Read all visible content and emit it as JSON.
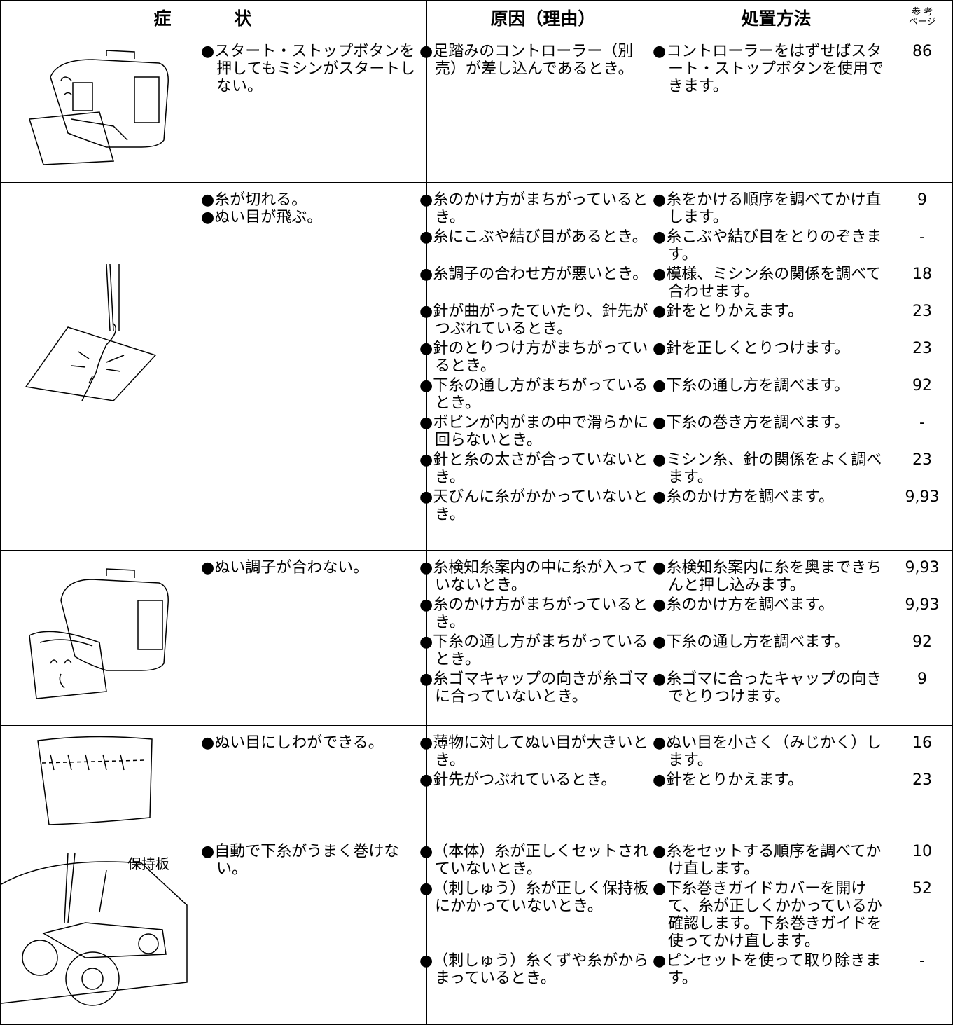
{
  "header": {
    "symptom_1": "症",
    "symptom_2": "状",
    "cause": "原因（理由）",
    "remedy": "処置方法",
    "page_1": "参 考",
    "page_2": "ページ"
  },
  "rows": [
    {
      "symptoms": [
        "●スタート・ストップボタンを押してもミシンがスタートしない。"
      ],
      "items": [
        {
          "cause": "●足踏みのコントローラー（別売）が差し込んであるとき。",
          "remedy": "●コントローラーをはずせばスタート・ストップボタンを使用できます。",
          "page": "86"
        }
      ]
    },
    {
      "symptoms": [
        "●糸が切れる。",
        "●ぬい目が飛ぶ。"
      ],
      "items": [
        {
          "cause": "●糸のかけ方がまちがっているとき。",
          "remedy": "●糸をかける順序を調べてかけ直します。",
          "page": "9"
        },
        {
          "cause": "●糸にこぶや結び目があるとき。",
          "remedy": "●糸こぶや結び目をとりのぞきます。",
          "page": "-"
        },
        {
          "cause": "●糸調子の合わせ方が悪いとき。",
          "remedy": "●模様、ミシン糸の関係を調べて合わせます。",
          "page": "18"
        },
        {
          "cause": "●針が曲がったていたり、針先がつぶれているとき。",
          "remedy": "●針をとりかえます。",
          "page": "23"
        },
        {
          "cause": "●針のとりつけ方がまちがっているとき。",
          "remedy": "●針を正しくとりつけます。",
          "page": "23"
        },
        {
          "cause": "●下糸の通し方がまちがっているとき。",
          "remedy": "●下糸の通し方を調べます。",
          "page": "92"
        },
        {
          "cause": "●ボビンが内がまの中で滑らかに回らないとき。",
          "remedy": "●下糸の巻き方を調べます。",
          "page": "-"
        },
        {
          "cause": "●針と糸の太さが合っていないとき。",
          "remedy": "●ミシン糸、針の関係をよく調べます。",
          "page": "23"
        },
        {
          "cause": "●天びんに糸がかかっていないとき。",
          "remedy": "●糸のかけ方を調べます。",
          "page": "9,93"
        }
      ]
    },
    {
      "symptoms": [
        "●ぬい調子が合わない。"
      ],
      "items": [
        {
          "cause": "●糸検知糸案内の中に糸が入っていないとき。",
          "remedy": "●糸検知糸案内に糸を奥まできちんと押し込みます。",
          "page": "9,93"
        },
        {
          "cause": "●糸のかけ方がまちがっているとき。",
          "remedy": "●糸のかけ方を調べます。",
          "page": "9,93"
        },
        {
          "cause": "●下糸の通し方がまちがっているとき。",
          "remedy": "●下糸の通し方を調べます。",
          "page": "92"
        },
        {
          "cause": "●糸ゴマキャップの向きが糸ゴマに合っていないとき。",
          "remedy": "●糸ゴマに合ったキャップの向きでとりつけます。",
          "page": "9"
        }
      ]
    },
    {
      "symptoms": [
        "●ぬい目にしわができる。"
      ],
      "items": [
        {
          "cause": "●薄物に対してぬい目が大きいとき。",
          "remedy": "●ぬい目を小さく（みじかく）します。",
          "page": "16"
        },
        {
          "cause": "●針先がつぶれているとき。",
          "remedy": "●針をとりかえます。",
          "page": "23"
        }
      ]
    },
    {
      "symptoms": [
        "●自動で下糸がうまく巻けない。"
      ],
      "image_label": "保持板",
      "items": [
        {
          "cause": "●（本体）糸が正しくセットされていないとき。",
          "remedy": "●糸をセットする順序を調べてかけ直します。",
          "page": "10"
        },
        {
          "cause": "●（刺しゅう）糸が正しく保持板にかかっていないとき。",
          "remedy": "●下糸巻きガイドカバーを開けて、糸が正しくかかっているか確認します。下糸巻きガイドを使ってかけ直します。",
          "page": "52"
        },
        {
          "cause": "●（刺しゅう）糸くずや糸がからまっているとき。",
          "remedy": "●ピンセットを使って取り除きます。",
          "page": "-"
        }
      ]
    }
  ]
}
